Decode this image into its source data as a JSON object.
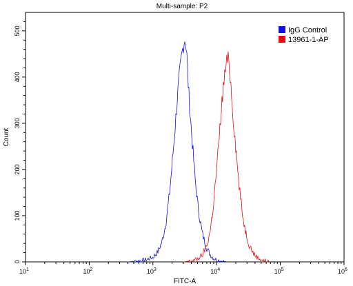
{
  "chart_data": {
    "type": "line",
    "title": "Multi-sample: P2",
    "xlabel": "FITC-A",
    "ylabel": "Count",
    "x_scale": "log",
    "xlim": [
      10,
      1000000
    ],
    "ylim": [
      0,
      540
    ],
    "x_tick_labels": [
      {
        "base": "10",
        "exp": "1"
      },
      {
        "base": "10",
        "exp": "2"
      },
      {
        "base": "10",
        "exp": "3"
      },
      {
        "base": "10",
        "exp": "4"
      },
      {
        "base": "10",
        "exp": "5"
      },
      {
        "base": "10",
        "exp": "6"
      }
    ],
    "x_ticks": [
      10,
      100,
      1000,
      10000,
      100000,
      1000000
    ],
    "y_ticks": [
      0,
      100,
      200,
      300,
      400,
      500
    ],
    "y_tick_labels": [
      "0",
      "100",
      "200",
      "300",
      "400",
      "500"
    ],
    "grid": false,
    "legend_position": "top-right",
    "series": [
      {
        "name": "IgG Control",
        "color": "#1010e0",
        "points": [
          [
            400,
            0
          ],
          [
            600,
            2
          ],
          [
            800,
            5
          ],
          [
            1000,
            10
          ],
          [
            1200,
            22
          ],
          [
            1400,
            45
          ],
          [
            1600,
            85
          ],
          [
            1800,
            140
          ],
          [
            2000,
            210
          ],
          [
            2200,
            280
          ],
          [
            2400,
            350
          ],
          [
            2600,
            400
          ],
          [
            2800,
            440
          ],
          [
            3000,
            470
          ],
          [
            3200,
            485
          ],
          [
            3400,
            450
          ],
          [
            3600,
            380
          ],
          [
            3800,
            330
          ],
          [
            4200,
            250
          ],
          [
            4600,
            180
          ],
          [
            5000,
            130
          ],
          [
            5500,
            90
          ],
          [
            6000,
            60
          ],
          [
            7000,
            30
          ],
          [
            8000,
            15
          ],
          [
            9000,
            8
          ],
          [
            10000,
            4
          ],
          [
            12000,
            2
          ],
          [
            15000,
            0
          ]
        ]
      },
      {
        "name": "13961-1-AP",
        "color": "#e01010",
        "points": [
          [
            3000,
            0
          ],
          [
            4000,
            2
          ],
          [
            5000,
            6
          ],
          [
            6000,
            15
          ],
          [
            7000,
            35
          ],
          [
            8000,
            70
          ],
          [
            9000,
            130
          ],
          [
            10000,
            200
          ],
          [
            11000,
            270
          ],
          [
            12000,
            340
          ],
          [
            13000,
            390
          ],
          [
            14000,
            425
          ],
          [
            15000,
            440
          ],
          [
            16000,
            420
          ],
          [
            17000,
            370
          ],
          [
            18000,
            320
          ],
          [
            20000,
            250
          ],
          [
            22000,
            180
          ],
          [
            25000,
            110
          ],
          [
            28000,
            70
          ],
          [
            32000,
            40
          ],
          [
            38000,
            18
          ],
          [
            45000,
            8
          ],
          [
            55000,
            3
          ],
          [
            70000,
            0
          ]
        ]
      }
    ]
  }
}
